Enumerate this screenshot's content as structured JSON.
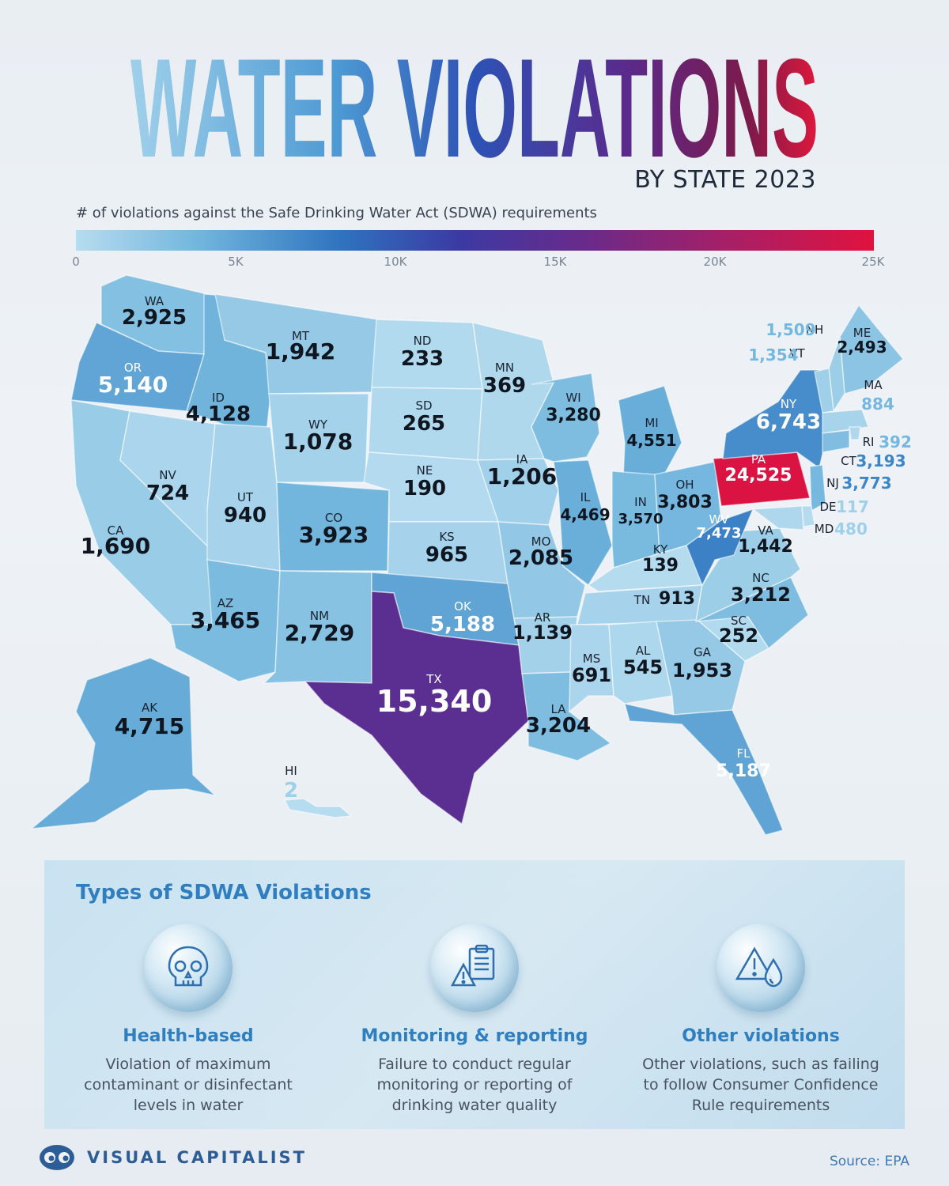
{
  "header": {
    "title": "WATER VIOLATIONS",
    "subtitle": "BY STATE 2023",
    "legend_title": "# of violations against the Safe Drinking Water Act (SDWA) requirements"
  },
  "legend": {
    "ticks": [
      "0",
      "5K",
      "10K",
      "15K",
      "20K",
      "25K"
    ],
    "range": [
      0,
      25000
    ],
    "colors": [
      "#b6dcef",
      "#6fb4dc",
      "#2f74c0",
      "#3b3aa3",
      "#6a2a8a",
      "#a81f66",
      "#e0123f"
    ]
  },
  "chart_data": {
    "type": "choropleth",
    "title": "WATER VIOLATIONS",
    "subtitle": "BY STATE 2023",
    "value_label": "# of violations against the Safe Drinking Water Act (SDWA) requirements",
    "color_scale_range": [
      0,
      25000
    ],
    "states": [
      {
        "abbr": "WA",
        "value": 2925,
        "label": "2,925"
      },
      {
        "abbr": "OR",
        "value": 5140,
        "label": "5,140"
      },
      {
        "abbr": "CA",
        "value": 1690,
        "label": "1,690"
      },
      {
        "abbr": "NV",
        "value": 724,
        "label": "724"
      },
      {
        "abbr": "ID",
        "value": 4128,
        "label": "4,128"
      },
      {
        "abbr": "MT",
        "value": 1942,
        "label": "1,942"
      },
      {
        "abbr": "WY",
        "value": 1078,
        "label": "1,078"
      },
      {
        "abbr": "UT",
        "value": 940,
        "label": "940"
      },
      {
        "abbr": "AZ",
        "value": 3465,
        "label": "3,465"
      },
      {
        "abbr": "CO",
        "value": 3923,
        "label": "3,923"
      },
      {
        "abbr": "NM",
        "value": 2729,
        "label": "2,729"
      },
      {
        "abbr": "ND",
        "value": 233,
        "label": "233"
      },
      {
        "abbr": "SD",
        "value": 265,
        "label": "265"
      },
      {
        "abbr": "NE",
        "value": 190,
        "label": "190"
      },
      {
        "abbr": "KS",
        "value": 965,
        "label": "965"
      },
      {
        "abbr": "OK",
        "value": 5188,
        "label": "5,188"
      },
      {
        "abbr": "TX",
        "value": 15340,
        "label": "15,340"
      },
      {
        "abbr": "MN",
        "value": 369,
        "label": "369"
      },
      {
        "abbr": "IA",
        "value": 1206,
        "label": "1,206"
      },
      {
        "abbr": "MO",
        "value": 2085,
        "label": "2,085"
      },
      {
        "abbr": "AR",
        "value": 1139,
        "label": "1,139"
      },
      {
        "abbr": "LA",
        "value": 3204,
        "label": "3,204"
      },
      {
        "abbr": "WI",
        "value": 3280,
        "label": "3,280"
      },
      {
        "abbr": "IL",
        "value": 4469,
        "label": "4,469"
      },
      {
        "abbr": "MI",
        "value": 4551,
        "label": "4,551"
      },
      {
        "abbr": "IN",
        "value": 3570,
        "label": "3,570"
      },
      {
        "abbr": "OH",
        "value": 3803,
        "label": "3,803"
      },
      {
        "abbr": "KY",
        "value": 139,
        "label": "139"
      },
      {
        "abbr": "TN",
        "value": 913,
        "label": "913"
      },
      {
        "abbr": "MS",
        "value": 691,
        "label": "691"
      },
      {
        "abbr": "AL",
        "value": 545,
        "label": "545"
      },
      {
        "abbr": "GA",
        "value": 1953,
        "label": "1,953"
      },
      {
        "abbr": "FL",
        "value": 5187,
        "label": "5,187"
      },
      {
        "abbr": "SC",
        "value": 252,
        "label": "252"
      },
      {
        "abbr": "NC",
        "value": 3212,
        "label": "3,212"
      },
      {
        "abbr": "VA",
        "value": 1442,
        "label": "1,442"
      },
      {
        "abbr": "WV",
        "value": 7473,
        "label": "7,473"
      },
      {
        "abbr": "PA",
        "value": 24525,
        "label": "24,525"
      },
      {
        "abbr": "NY",
        "value": 6743,
        "label": "6,743"
      },
      {
        "abbr": "ME",
        "value": 2493,
        "label": "2,493"
      },
      {
        "abbr": "NH",
        "value": 1509,
        "label": "1,509"
      },
      {
        "abbr": "VT",
        "value": 1354,
        "label": "1,354"
      },
      {
        "abbr": "MA",
        "value": 884,
        "label": "884"
      },
      {
        "abbr": "RI",
        "value": 392,
        "label": "392"
      },
      {
        "abbr": "CT",
        "value": 3193,
        "label": "3,193"
      },
      {
        "abbr": "NJ",
        "value": 3773,
        "label": "3,773"
      },
      {
        "abbr": "DE",
        "value": 117,
        "label": "117"
      },
      {
        "abbr": "MD",
        "value": 480,
        "label": "480"
      },
      {
        "abbr": "AK",
        "value": 4715,
        "label": "4,715"
      },
      {
        "abbr": "HI",
        "value": 2,
        "label": "2"
      }
    ]
  },
  "panel": {
    "title": "Types of SDWA Violations",
    "types": [
      {
        "icon": "skull-icon",
        "name": "Health-based",
        "desc": [
          "Violation of maximum",
          "contaminant or disinfectant",
          "levels in water"
        ]
      },
      {
        "icon": "clipboard-warning-icon",
        "name": "Monitoring & reporting",
        "desc": [
          "Failure to conduct regular",
          "monitoring or reporting of",
          "drinking water quality"
        ]
      },
      {
        "icon": "warning-drop-icon",
        "name": "Other violations",
        "desc": [
          "Other violations, such as failing",
          "to follow Consumer Confidence",
          "Rule requirements"
        ]
      }
    ]
  },
  "footer": {
    "brand": "VISUAL CAPITALIST",
    "source": "Source: EPA"
  }
}
